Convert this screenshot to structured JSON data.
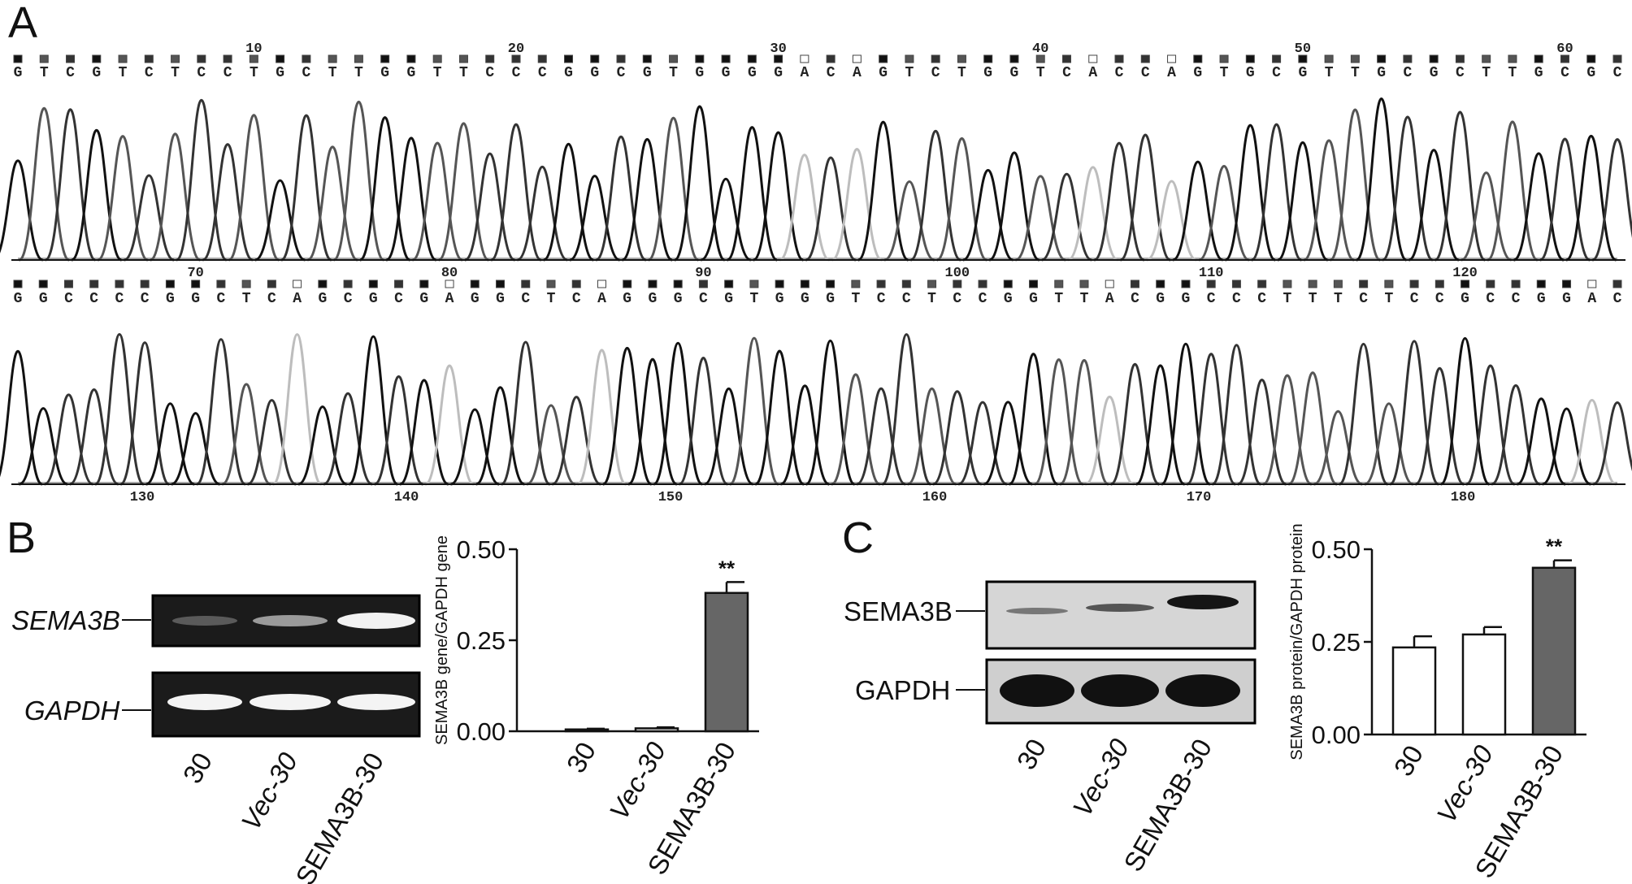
{
  "panels": {
    "A": {
      "letter": "A",
      "row1_sequence": "GTCGTCTCCTGCTTGGTTCCCGGCGTGGGGACAGTCTGGTCACCAGTGCGTTGCGCTTGCGC",
      "row1_positions": [
        "10",
        "20",
        "30",
        "40",
        "50",
        "60"
      ],
      "row2_sequence": "GGCCCCGGCTCAGCGCGAGGCTCAGGGCGTGGGTCCTCCGGTTACGGCCCTTTCTCCGCCGGAC",
      "row2_positions": [
        "70",
        "80",
        "90",
        "100",
        "110",
        "120"
      ],
      "row3_positions": [
        "130",
        "140",
        "150",
        "160",
        "170",
        "180"
      ]
    },
    "B": {
      "letter": "B",
      "gel": {
        "bands": [
          "SEMA3B",
          "GAPDH"
        ],
        "lanes": [
          "30",
          "Vec-30",
          "SEMA3B-30"
        ]
      },
      "chart_data": {
        "type": "bar",
        "categories": [
          "30",
          "Vec-30",
          "SEMA3B-30"
        ],
        "values": [
          0.005,
          0.008,
          0.38
        ],
        "errors": [
          0.002,
          0.003,
          0.03
        ],
        "ylabel": "SEMA3B gene/GAPDH gene",
        "ylim": [
          0,
          0.5
        ],
        "yticks": [
          "0.00",
          "0.25",
          "0.50"
        ],
        "significance": [
          "",
          "",
          "**"
        ],
        "bar_colors": [
          "#ffffff",
          "#ffffff",
          "#666666"
        ]
      }
    },
    "C": {
      "letter": "C",
      "blot": {
        "bands": [
          "SEMA3B",
          "GAPDH"
        ],
        "lanes": [
          "30",
          "Vec-30",
          "SEMA3B-30"
        ]
      },
      "chart_data": {
        "type": "bar",
        "categories": [
          "30",
          "Vec-30",
          "SEMA3B-30"
        ],
        "values": [
          0.235,
          0.27,
          0.45
        ],
        "errors": [
          0.03,
          0.02,
          0.02
        ],
        "ylabel": "SEMA3B protein/GAPDH protein",
        "ylim": [
          0,
          0.5
        ],
        "yticks": [
          "0.00",
          "0.25",
          "0.50"
        ],
        "significance": [
          "",
          "",
          "**"
        ],
        "bar_colors": [
          "#ffffff",
          "#ffffff",
          "#666666"
        ]
      }
    }
  }
}
